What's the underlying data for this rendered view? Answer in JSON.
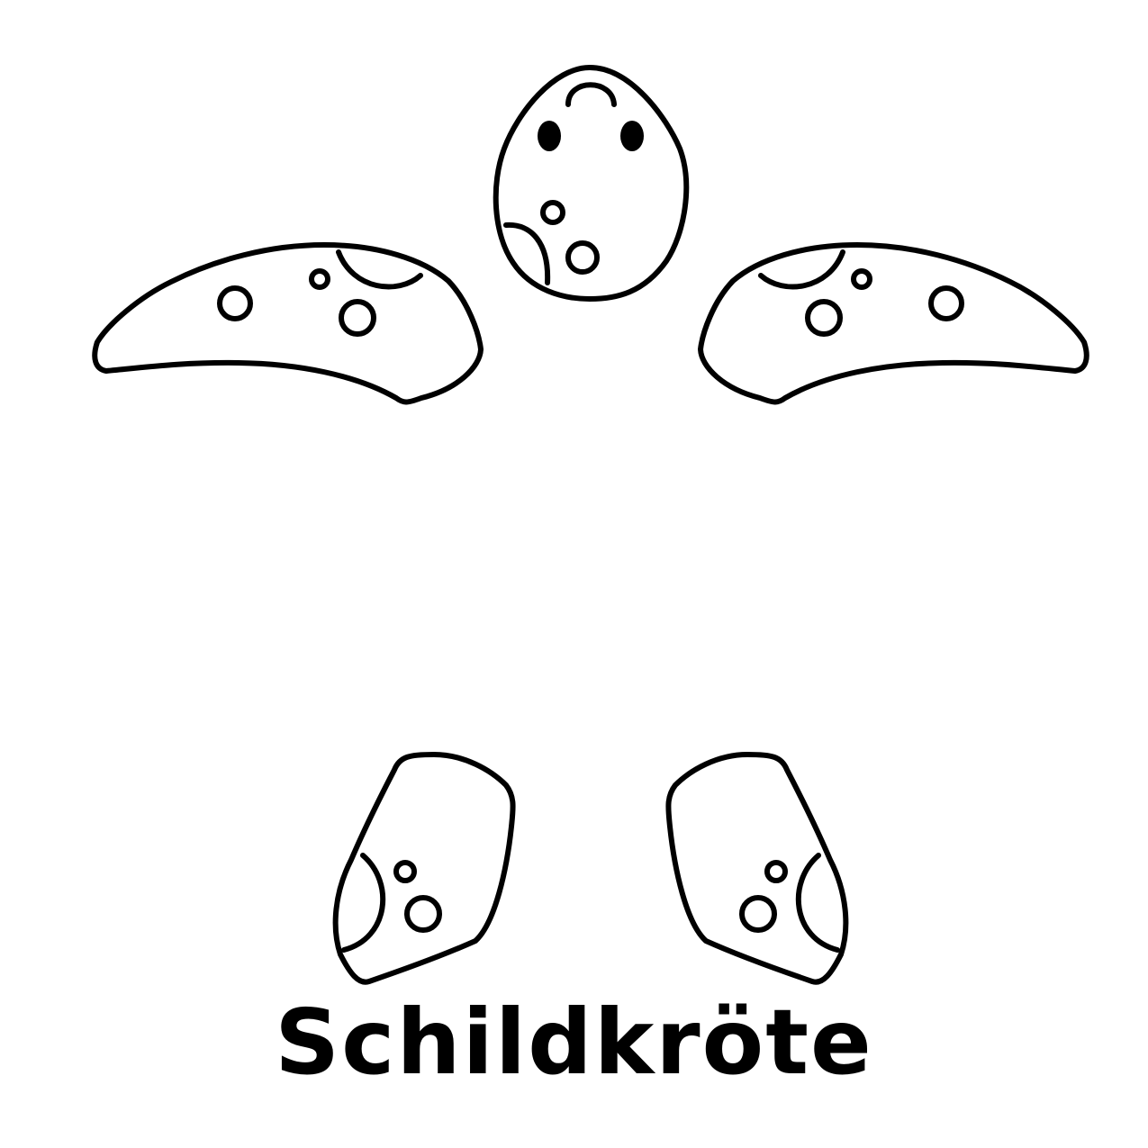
{
  "caption": {
    "text": "Schildkröte"
  },
  "colors": {
    "ink": "#000000",
    "paper": "#ffffff"
  },
  "parts": {
    "head": "turtle-head",
    "front_flippers": [
      "front-left-flipper",
      "front-right-flipper"
    ],
    "back_flippers": [
      "back-left-flipper",
      "back-right-flipper"
    ]
  }
}
